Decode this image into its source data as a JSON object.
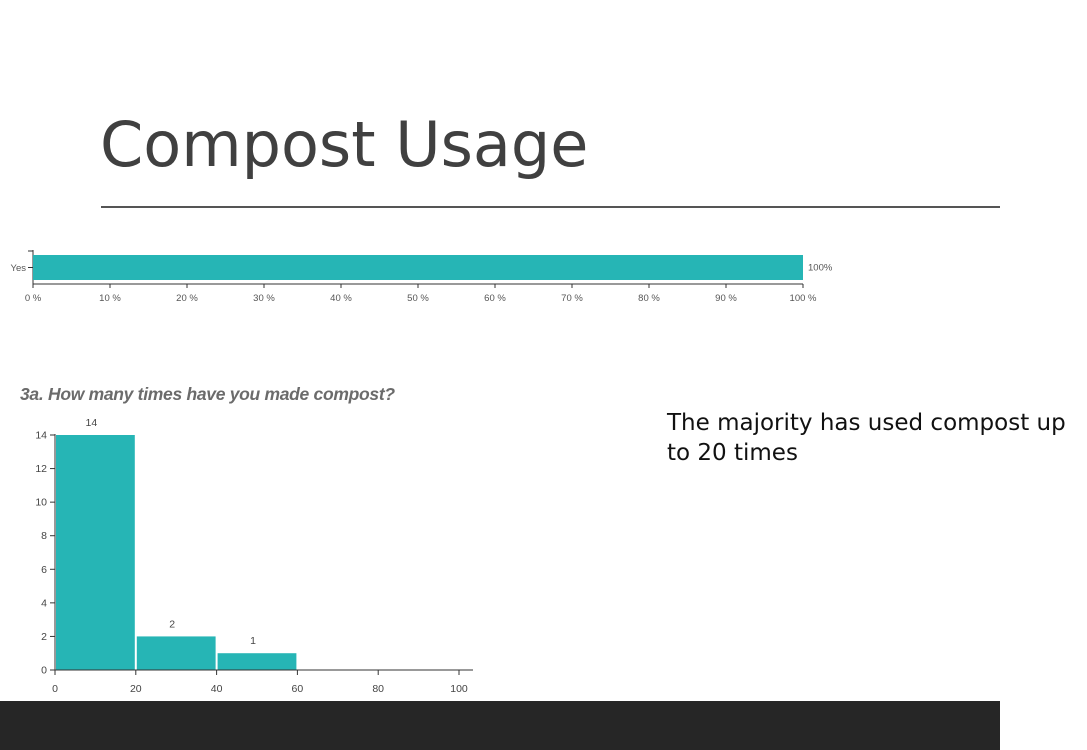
{
  "slide": {
    "title": "Compost Usage",
    "summary": "The majority has used compost up to 20 times"
  },
  "colors": {
    "bar": "#26b5b5",
    "axis": "#333333",
    "title": "#404040",
    "footer": "#262626"
  },
  "chart_data": [
    {
      "type": "bar",
      "orientation": "horizontal",
      "title": "",
      "categories": [
        "Yes"
      ],
      "values": [
        100
      ],
      "data_labels": [
        "100%"
      ],
      "xlim": [
        0,
        100
      ],
      "x_ticks": [
        0,
        10,
        20,
        30,
        40,
        50,
        60,
        70,
        80,
        90,
        100
      ],
      "x_tick_labels": [
        "0 %",
        "10 %",
        "20 %",
        "30 %",
        "40 %",
        "50 %",
        "60 %",
        "70 %",
        "80 %",
        "90 %",
        "100 %"
      ],
      "grid": false,
      "legend": "none"
    },
    {
      "type": "bar",
      "subtype": "histogram",
      "title": "3a. How many times have you made compost?",
      "bins": [
        [
          0,
          20
        ],
        [
          20,
          40
        ],
        [
          40,
          60
        ]
      ],
      "values": [
        14,
        2,
        1
      ],
      "data_labels": [
        "14",
        "2",
        "1"
      ],
      "xlim": [
        0,
        100
      ],
      "ylim": [
        0,
        14
      ],
      "x_ticks": [
        0,
        20,
        40,
        60,
        80,
        100
      ],
      "y_ticks": [
        0,
        2,
        4,
        6,
        8,
        10,
        12,
        14
      ],
      "grid": false,
      "legend": "none"
    }
  ]
}
